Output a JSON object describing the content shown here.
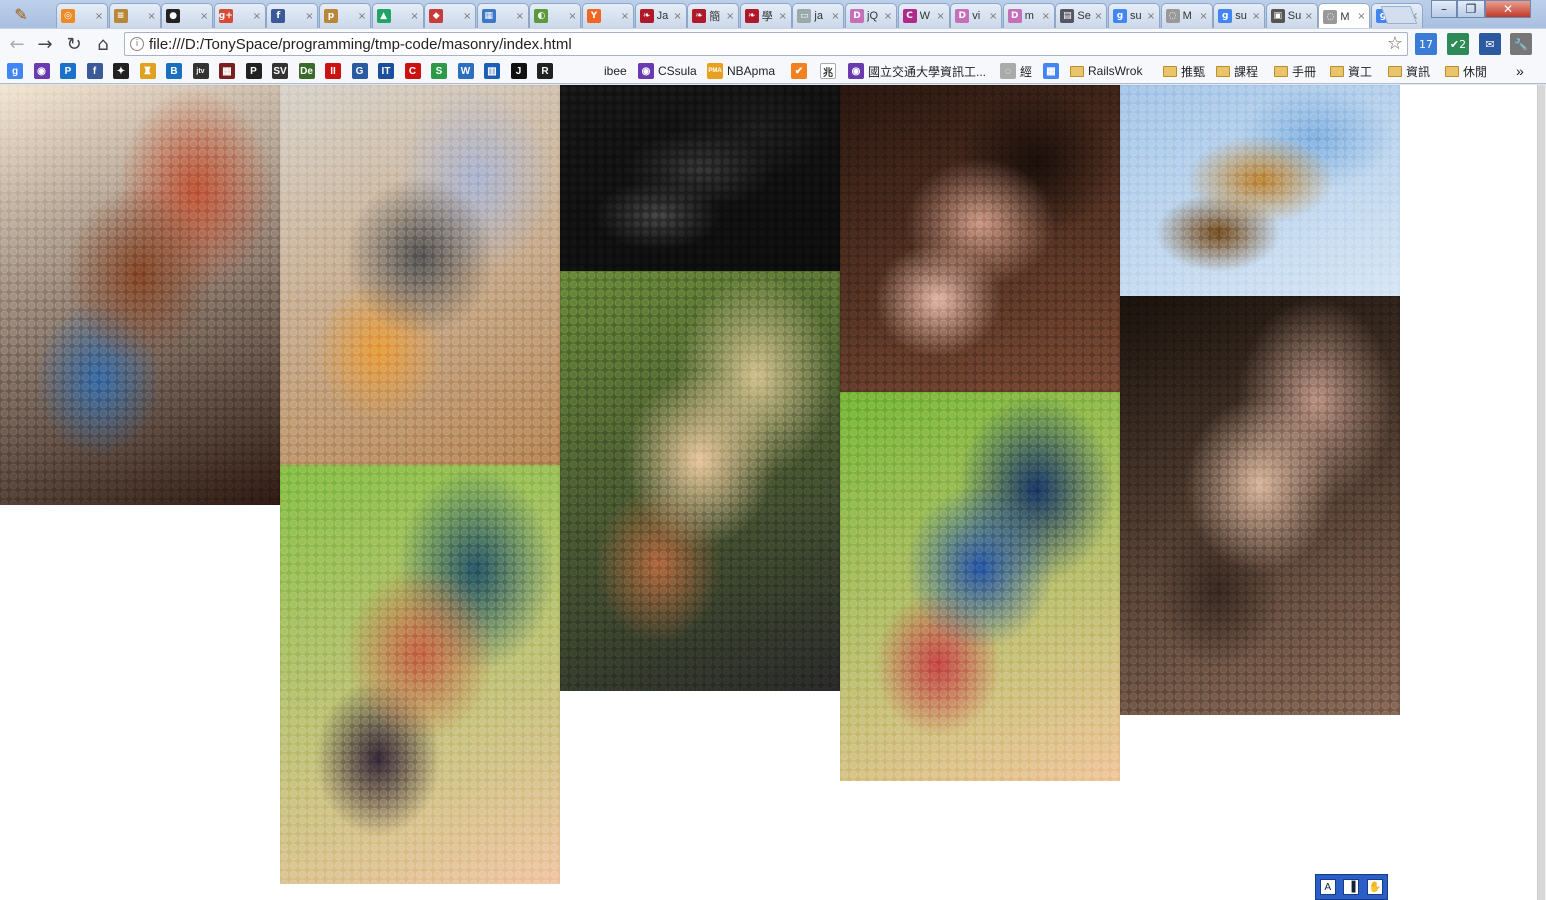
{
  "tabs": [
    {
      "title": "",
      "fav": "#f08a24",
      "glyph": "◎"
    },
    {
      "title": "",
      "fav": "#b8873a",
      "glyph": "≡"
    },
    {
      "title": "",
      "fav": "#222",
      "glyph": "●"
    },
    {
      "title": "",
      "fav": "#d64a37",
      "glyph": "g+"
    },
    {
      "title": "",
      "fav": "#3b5998",
      "glyph": "f"
    },
    {
      "title": "",
      "fav": "#b8873a",
      "glyph": "p"
    },
    {
      "title": "",
      "fav": "#1fa463",
      "glyph": "▲"
    },
    {
      "title": "",
      "fav": "#c83b3b",
      "glyph": "◆"
    },
    {
      "title": "",
      "fav": "#3d78c4",
      "glyph": "▦"
    },
    {
      "title": "",
      "fav": "#5a9a3a",
      "glyph": "◐"
    },
    {
      "title": "",
      "fav": "#f26522",
      "glyph": "Y"
    },
    {
      "title": "Ja",
      "fav": "#b0192a",
      "glyph": "❧"
    },
    {
      "title": "簡",
      "fav": "#b0192a",
      "glyph": "❧"
    },
    {
      "title": "學",
      "fav": "#b0192a",
      "glyph": "❧"
    },
    {
      "title": "ja",
      "fav": "#9aa",
      "glyph": "▭"
    },
    {
      "title": "jQ",
      "fav": "#c46fb8",
      "glyph": "D"
    },
    {
      "title": "W",
      "fav": "#b02a8a",
      "glyph": "C"
    },
    {
      "title": "vi",
      "fav": "#c46fb8",
      "glyph": "D"
    },
    {
      "title": "m",
      "fav": "#c46fb8",
      "glyph": "D"
    },
    {
      "title": "Se",
      "fav": "#556",
      "glyph": "▤"
    },
    {
      "title": "su",
      "fav": "#4285f4",
      "glyph": "g"
    },
    {
      "title": "M",
      "fav": "#999",
      "glyph": "◌"
    },
    {
      "title": "su",
      "fav": "#4285f4",
      "glyph": "g"
    },
    {
      "title": "Su",
      "fav": "#555",
      "glyph": "▣"
    },
    {
      "title": "M",
      "fav": "#999",
      "glyph": "◌"
    },
    {
      "title": "M",
      "fav": "#4285f4",
      "glyph": "g"
    }
  ],
  "active_tab_index": 24,
  "window_controls": {
    "minimize": "–",
    "maximize": "❐",
    "close": "✕"
  },
  "nav": {
    "back": "←",
    "forward": "→",
    "reload": "↻",
    "home": "⌂"
  },
  "address": {
    "url": "file:///D:/TonySpace/programming/tmp-code/masonry/index.html"
  },
  "extensions": [
    {
      "name": "calendar-extension-icon",
      "label": "17",
      "color": "#3a7bd5"
    },
    {
      "name": "tasks-extension-icon",
      "label": "✔2",
      "color": "#2e8b57"
    },
    {
      "name": "mail-extension-icon",
      "label": "✉",
      "color": "#2c5aa0"
    },
    {
      "name": "wrench-menu-icon",
      "label": "🔧",
      "color": "#777"
    }
  ],
  "bookmark_icons": [
    {
      "color": "#4285f4",
      "glyph": "g"
    },
    {
      "color": "#6a3bb0",
      "glyph": "◉"
    },
    {
      "color": "#1a73c9",
      "glyph": "P"
    },
    {
      "color": "#3b5998",
      "glyph": "f"
    },
    {
      "color": "#222",
      "glyph": "✦"
    },
    {
      "color": "#e0a020",
      "glyph": "♜"
    },
    {
      "color": "#1a6fbf",
      "glyph": "B"
    },
    {
      "color": "#333",
      "glyph": "jtv"
    },
    {
      "color": "#7a1f1f",
      "glyph": "▦"
    },
    {
      "color": "#222",
      "glyph": "P"
    },
    {
      "color": "#333",
      "glyph": "SV"
    },
    {
      "color": "#3a6b2a",
      "glyph": "De"
    },
    {
      "color": "#cc1111",
      "glyph": "II"
    },
    {
      "color": "#2a5aa0",
      "glyph": "G"
    },
    {
      "color": "#1a4fa0",
      "glyph": "IT"
    },
    {
      "color": "#cc1111",
      "glyph": "C"
    },
    {
      "color": "#2e9a48",
      "glyph": "S"
    },
    {
      "color": "#2a6fc0",
      "glyph": "W"
    },
    {
      "color": "#1a5fb4",
      "glyph": "▥"
    },
    {
      "color": "#111",
      "glyph": "J"
    },
    {
      "color": "#222",
      "glyph": "R"
    }
  ],
  "bookmark_items": [
    {
      "label": "ibee",
      "kind": "none"
    },
    {
      "label": "CSsula",
      "kind": "icon",
      "color": "#6a3bb0",
      "glyph": "◉"
    },
    {
      "label": "NBApma",
      "kind": "icon",
      "color": "#e8a020",
      "glyph": "PMA"
    },
    {
      "label": "",
      "kind": "icon",
      "color": "#f08020",
      "glyph": "✔"
    },
    {
      "label": "",
      "kind": "icon",
      "color": "#fff",
      "glyph": "兆"
    },
    {
      "label": "國立交通大學資訊工...",
      "kind": "icon",
      "color": "#6a3bb0",
      "glyph": "◉"
    },
    {
      "label": "經",
      "kind": "icon",
      "color": "#aaa",
      "glyph": "◌"
    },
    {
      "label": "",
      "kind": "icon",
      "color": "#4285f4",
      "glyph": "▦"
    },
    {
      "label": "RailsWrok",
      "kind": "folder"
    },
    {
      "label": "推甄",
      "kind": "folder"
    },
    {
      "label": "課程",
      "kind": "folder"
    },
    {
      "label": "手冊",
      "kind": "folder"
    },
    {
      "label": "資工",
      "kind": "folder"
    },
    {
      "label": "資訊",
      "kind": "folder"
    },
    {
      "label": "休閒",
      "kind": "folder"
    }
  ],
  "bookmark_overflow": "»",
  "gallery": [
    {
      "name": "portrait-bald-man",
      "colors": [
        "#f3e6d4",
        "#8a4a2a",
        "#2f1a12",
        "#3a6fa8",
        "#c25a3a"
      ]
    },
    {
      "name": "portrait-police-officer",
      "colors": [
        "#d9d4cc",
        "#5a5a5a",
        "#b88a5a",
        "#e8a040",
        "#aeb7d2"
      ]
    },
    {
      "name": "portrait-dark-mono",
      "colors": [
        "#1a1a1a",
        "#3a3a3a",
        "#0f0f0f",
        "#4a4a4a",
        "#222"
      ]
    },
    {
      "name": "portrait-girl-looking-up",
      "colors": [
        "#2a1710",
        "#c99a86",
        "#7a4a34",
        "#e0b8a8",
        "#1a0f0a"
      ]
    },
    {
      "name": "giraffe",
      "colors": [
        "#a9c8e8",
        "#c08a3a",
        "#d8e6f4",
        "#7a5020",
        "#88b4e0"
      ]
    },
    {
      "name": "portrait-man-pixelated",
      "colors": [
        "#6a8a3a",
        "#e8c8a0",
        "#2a2a2a",
        "#b06a40",
        "#d0c090"
      ]
    },
    {
      "name": "portrait-woman-closeup",
      "colors": [
        "#1a120c",
        "#d8b8a0",
        "#8a6a58",
        "#3a2a22",
        "#b89484"
      ]
    },
    {
      "name": "portrait-woman-smiling",
      "colors": [
        "#8ac04a",
        "#c86a4a",
        "#f0c8a8",
        "#3a2a3a",
        "#2a5a6a"
      ]
    },
    {
      "name": "portrait-hooded-girl",
      "colors": [
        "#7ab83a",
        "#2a5aa8",
        "#f0c8a0",
        "#c84a4a",
        "#1a3a6a"
      ]
    }
  ],
  "tray": [
    "A",
    "▐",
    "✋"
  ]
}
